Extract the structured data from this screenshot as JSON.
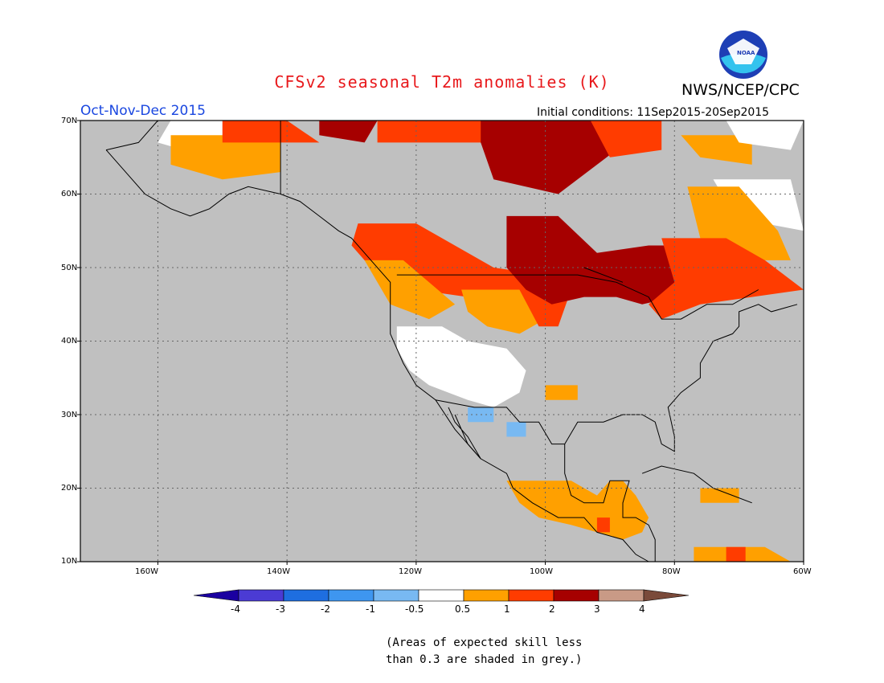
{
  "header": {
    "title": "CFSv2 seasonal T2m anomalies (K)",
    "agency": "NWS/NCEP/CPC",
    "logo_text": "NOAA",
    "season": "Oct-Nov-Dec 2015",
    "initial_conditions": "Initial conditions: 11Sep2015-20Sep2015"
  },
  "map": {
    "lon_range": [
      -172,
      -60
    ],
    "lat_range": [
      10,
      70
    ],
    "lat_labels": [
      "70N",
      "60N",
      "50N",
      "40N",
      "30N",
      "20N",
      "10N"
    ],
    "lon_labels": [
      "160W",
      "140W",
      "120W",
      "100W",
      "80W",
      "60W"
    ],
    "colors": {
      "ocean_low_skill": "#c0c0c0",
      "near_normal": "#ffffff",
      "gridline": "#666666"
    },
    "anomaly_regions": [
      {
        "name": "Alaska",
        "class": "0.5 to 1"
      },
      {
        "name": "Western Canada",
        "class": "1 to 2"
      },
      {
        "name": "Central Canada / Northern Plains",
        "class": "2 to 3"
      },
      {
        "name": "Quebec / Labrador",
        "class": "1 to 2"
      },
      {
        "name": "Southwest US",
        "class": "-0.5 to 0.5"
      },
      {
        "name": "Arizona / New Mexico spots",
        "class": "-1 to -0.5"
      },
      {
        "name": "Central America",
        "class": "0.5 to 1"
      }
    ]
  },
  "colorbar": {
    "ticks": [
      "-4",
      "-3",
      "-2",
      "-1",
      "-0.5",
      "0.5",
      "1",
      "2",
      "3",
      "4"
    ],
    "colors": [
      "#1a00a0",
      "#4b3bd4",
      "#1e6ee0",
      "#3e96f0",
      "#78b9f2",
      "#ffffff",
      "#ffa000",
      "#ff3c00",
      "#a60000",
      "#c99a86",
      "#7a4a3a"
    ]
  },
  "note": {
    "line1": "(Areas of expected skill less",
    "line2": "than 0.3 are shaded in grey.)"
  }
}
